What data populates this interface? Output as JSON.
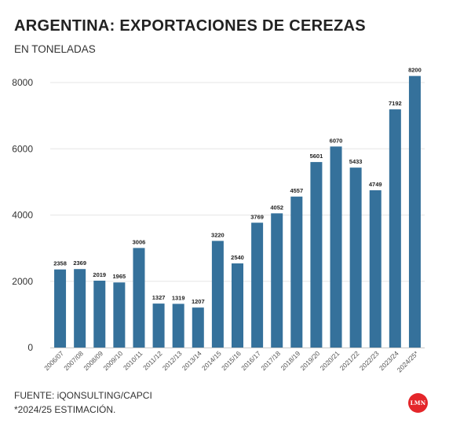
{
  "header": {
    "title": "ARGENTINA: EXPORTACIONES DE CEREZAS",
    "subtitle": "EN TONELADAS"
  },
  "footer": {
    "source": "FUENTE: iQONSULTING/CAPCI",
    "note": "*2024/25 ESTIMACIÓN."
  },
  "logo": {
    "text": "LMN",
    "color": "#e4262a"
  },
  "colors": {
    "bar": "#35719b",
    "grid": "#e6e6e6",
    "axis": "#c8c8c8"
  },
  "chart_data": {
    "type": "bar",
    "title": "ARGENTINA: EXPORTACIONES DE CEREZAS",
    "subtitle": "EN TONELADAS",
    "xlabel": "",
    "ylabel": "",
    "ylim": [
      0,
      8500
    ],
    "yticks": [
      0,
      2000,
      4000,
      6000,
      8000
    ],
    "grid": true,
    "categories": [
      "2006/07",
      "2007/08",
      "2008/09",
      "2009/10",
      "2010/11",
      "2011/12",
      "2012/13",
      "2013/14",
      "2014/15",
      "2015/16",
      "2016/17",
      "2017/18",
      "2018/19",
      "2019/20",
      "2020/21",
      "2021/22",
      "2022/23",
      "2023/24",
      "2024/25*"
    ],
    "values": [
      2358,
      2369,
      2019,
      1965,
      3006,
      1327,
      1319,
      1207,
      3220,
      2540,
      3769,
      4052,
      4557,
      5601,
      6070,
      5433,
      4749,
      7192,
      8200
    ]
  }
}
